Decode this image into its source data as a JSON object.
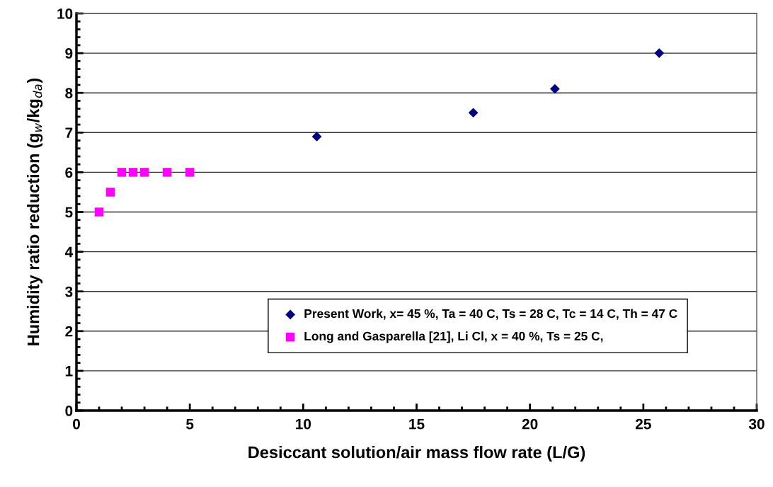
{
  "chart_data": {
    "type": "scatter",
    "xlabel": "Desiccant solution/air mass flow rate (L/G)",
    "ylabel": "Humidity ratio reduction (g$_{w}$/kg$_{da}$)",
    "series": [
      {
        "name": "Present Work, x= 45 %, Ta = 40 C, Ts = 28 C, Tc = 14 C, Th = 47 C",
        "color": "#000080",
        "marker": "diamond",
        "x": [
          10.6,
          17.5,
          21.1,
          25.7
        ],
        "values": [
          6.9,
          7.5,
          8.1,
          9.0
        ]
      },
      {
        "name": "Long and Gasparella [21], Li Cl, x = 40 %, Ts = 25 C,",
        "color": "#ff00ff",
        "marker": "square",
        "x": [
          1.0,
          1.5,
          2.0,
          2.5,
          3.0,
          4.0,
          5.0
        ],
        "values": [
          5.0,
          5.5,
          6.0,
          6.0,
          6.0,
          6.0,
          6.0
        ]
      }
    ],
    "xlim": [
      0,
      30
    ],
    "xticks": [
      0,
      5,
      10,
      15,
      20,
      25,
      30
    ],
    "ylim": [
      0,
      10
    ],
    "yticks": [
      0,
      1,
      2,
      3,
      4,
      5,
      6,
      7,
      8,
      9,
      10
    ],
    "grid": "y",
    "legend": "bottom"
  }
}
